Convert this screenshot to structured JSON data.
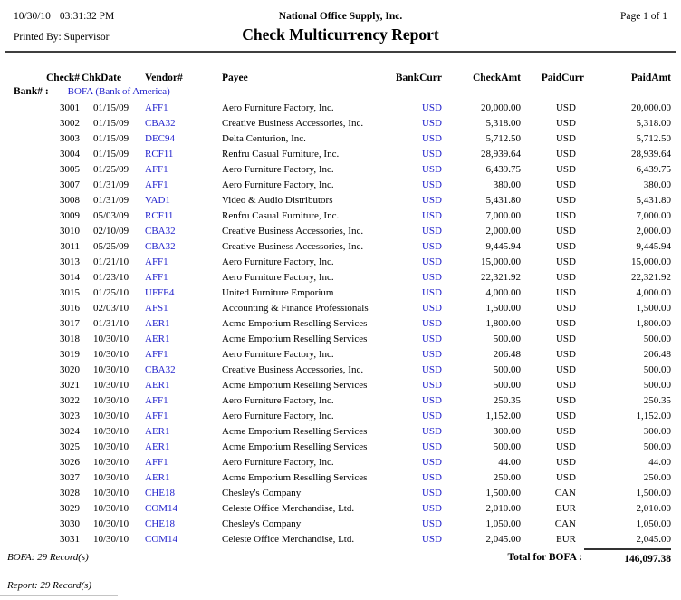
{
  "page": {
    "date": "10/30/10",
    "time": "03:31:32 PM",
    "company": "National Office Supply, Inc.",
    "page_label": "Page 1 of 1",
    "printed_by": "Printed By: Supervisor",
    "title": "Check Multicurrency Report"
  },
  "colors": {
    "link_blue": "#2222cc"
  },
  "table": {
    "columns": [
      "Check#",
      "ChkDate",
      "Vendor#",
      "Payee",
      "BankCurr",
      "CheckAmt",
      "PaidCurr",
      "PaidAmt"
    ],
    "bank_label": "Bank# :",
    "bank_value": "BOFA (Bank of America)",
    "rows": [
      {
        "check": "3001",
        "date": "01/15/09",
        "vendor": "AFF1",
        "payee": "Aero Furniture Factory, Inc.",
        "bank_curr": "USD",
        "check_amt": "20,000.00",
        "paid_curr": "USD",
        "paid_amt": "20,000.00"
      },
      {
        "check": "3002",
        "date": "01/15/09",
        "vendor": "CBA32",
        "payee": "Creative Business Accessories, Inc.",
        "bank_curr": "USD",
        "check_amt": "5,318.00",
        "paid_curr": "USD",
        "paid_amt": "5,318.00"
      },
      {
        "check": "3003",
        "date": "01/15/09",
        "vendor": "DEC94",
        "payee": "Delta Centurion, Inc.",
        "bank_curr": "USD",
        "check_amt": "5,712.50",
        "paid_curr": "USD",
        "paid_amt": "5,712.50"
      },
      {
        "check": "3004",
        "date": "01/15/09",
        "vendor": "RCF11",
        "payee": "Renfru Casual Furniture, Inc.",
        "bank_curr": "USD",
        "check_amt": "28,939.64",
        "paid_curr": "USD",
        "paid_amt": "28,939.64"
      },
      {
        "check": "3005",
        "date": "01/25/09",
        "vendor": "AFF1",
        "payee": "Aero Furniture Factory, Inc.",
        "bank_curr": "USD",
        "check_amt": "6,439.75",
        "paid_curr": "USD",
        "paid_amt": "6,439.75"
      },
      {
        "check": "3007",
        "date": "01/31/09",
        "vendor": "AFF1",
        "payee": "Aero Furniture Factory, Inc.",
        "bank_curr": "USD",
        "check_amt": "380.00",
        "paid_curr": "USD",
        "paid_amt": "380.00"
      },
      {
        "check": "3008",
        "date": "01/31/09",
        "vendor": "VAD1",
        "payee": "Video & Audio Distributors",
        "bank_curr": "USD",
        "check_amt": "5,431.80",
        "paid_curr": "USD",
        "paid_amt": "5,431.80"
      },
      {
        "check": "3009",
        "date": "05/03/09",
        "vendor": "RCF11",
        "payee": "Renfru Casual Furniture, Inc.",
        "bank_curr": "USD",
        "check_amt": "7,000.00",
        "paid_curr": "USD",
        "paid_amt": "7,000.00"
      },
      {
        "check": "3010",
        "date": "02/10/09",
        "vendor": "CBA32",
        "payee": "Creative Business Accessories, Inc.",
        "bank_curr": "USD",
        "check_amt": "2,000.00",
        "paid_curr": "USD",
        "paid_amt": "2,000.00"
      },
      {
        "check": "3011",
        "date": "05/25/09",
        "vendor": "CBA32",
        "payee": "Creative Business Accessories, Inc.",
        "bank_curr": "USD",
        "check_amt": "9,445.94",
        "paid_curr": "USD",
        "paid_amt": "9,445.94"
      },
      {
        "check": "3013",
        "date": "01/21/10",
        "vendor": "AFF1",
        "payee": "Aero Furniture Factory, Inc.",
        "bank_curr": "USD",
        "check_amt": "15,000.00",
        "paid_curr": "USD",
        "paid_amt": "15,000.00"
      },
      {
        "check": "3014",
        "date": "01/23/10",
        "vendor": "AFF1",
        "payee": "Aero Furniture Factory, Inc.",
        "bank_curr": "USD",
        "check_amt": "22,321.92",
        "paid_curr": "USD",
        "paid_amt": "22,321.92"
      },
      {
        "check": "3015",
        "date": "01/25/10",
        "vendor": "UFFE4",
        "payee": "United Furniture Emporium",
        "bank_curr": "USD",
        "check_amt": "4,000.00",
        "paid_curr": "USD",
        "paid_amt": "4,000.00"
      },
      {
        "check": "3016",
        "date": "02/03/10",
        "vendor": "AFS1",
        "payee": "Accounting & Finance Professionals",
        "bank_curr": "USD",
        "check_amt": "1,500.00",
        "paid_curr": "USD",
        "paid_amt": "1,500.00"
      },
      {
        "check": "3017",
        "date": "01/31/10",
        "vendor": "AER1",
        "payee": "Acme Emporium Reselling Services",
        "bank_curr": "USD",
        "check_amt": "1,800.00",
        "paid_curr": "USD",
        "paid_amt": "1,800.00"
      },
      {
        "check": "3018",
        "date": "10/30/10",
        "vendor": "AER1",
        "payee": "Acme Emporium Reselling Services",
        "bank_curr": "USD",
        "check_amt": "500.00",
        "paid_curr": "USD",
        "paid_amt": "500.00"
      },
      {
        "check": "3019",
        "date": "10/30/10",
        "vendor": "AFF1",
        "payee": "Aero Furniture Factory, Inc.",
        "bank_curr": "USD",
        "check_amt": "206.48",
        "paid_curr": "USD",
        "paid_amt": "206.48"
      },
      {
        "check": "3020",
        "date": "10/30/10",
        "vendor": "CBA32",
        "payee": "Creative Business Accessories, Inc.",
        "bank_curr": "USD",
        "check_amt": "500.00",
        "paid_curr": "USD",
        "paid_amt": "500.00"
      },
      {
        "check": "3021",
        "date": "10/30/10",
        "vendor": "AER1",
        "payee": "Acme Emporium Reselling Services",
        "bank_curr": "USD",
        "check_amt": "500.00",
        "paid_curr": "USD",
        "paid_amt": "500.00"
      },
      {
        "check": "3022",
        "date": "10/30/10",
        "vendor": "AFF1",
        "payee": "Aero Furniture Factory, Inc.",
        "bank_curr": "USD",
        "check_amt": "250.35",
        "paid_curr": "USD",
        "paid_amt": "250.35"
      },
      {
        "check": "3023",
        "date": "10/30/10",
        "vendor": "AFF1",
        "payee": "Aero Furniture Factory, Inc.",
        "bank_curr": "USD",
        "check_amt": "1,152.00",
        "paid_curr": "USD",
        "paid_amt": "1,152.00"
      },
      {
        "check": "3024",
        "date": "10/30/10",
        "vendor": "AER1",
        "payee": "Acme Emporium Reselling Services",
        "bank_curr": "USD",
        "check_amt": "300.00",
        "paid_curr": "USD",
        "paid_amt": "300.00"
      },
      {
        "check": "3025",
        "date": "10/30/10",
        "vendor": "AER1",
        "payee": "Acme Emporium Reselling Services",
        "bank_curr": "USD",
        "check_amt": "500.00",
        "paid_curr": "USD",
        "paid_amt": "500.00"
      },
      {
        "check": "3026",
        "date": "10/30/10",
        "vendor": "AFF1",
        "payee": "Aero Furniture Factory, Inc.",
        "bank_curr": "USD",
        "check_amt": "44.00",
        "paid_curr": "USD",
        "paid_amt": "44.00"
      },
      {
        "check": "3027",
        "date": "10/30/10",
        "vendor": "AER1",
        "payee": "Acme Emporium Reselling Services",
        "bank_curr": "USD",
        "check_amt": "250.00",
        "paid_curr": "USD",
        "paid_amt": "250.00"
      },
      {
        "check": "3028",
        "date": "10/30/10",
        "vendor": "CHE18",
        "payee": "Chesley's Company",
        "bank_curr": "USD",
        "check_amt": "1,500.00",
        "paid_curr": "CAN",
        "paid_amt": "1,500.00"
      },
      {
        "check": "3029",
        "date": "10/30/10",
        "vendor": "COM14",
        "payee": "Celeste Office Merchandise, Ltd.",
        "bank_curr": "USD",
        "check_amt": "2,010.00",
        "paid_curr": "EUR",
        "paid_amt": "2,010.00"
      },
      {
        "check": "3030",
        "date": "10/30/10",
        "vendor": "CHE18",
        "payee": "Chesley's Company",
        "bank_curr": "USD",
        "check_amt": "1,050.00",
        "paid_curr": "CAN",
        "paid_amt": "1,050.00"
      },
      {
        "check": "3031",
        "date": "10/30/10",
        "vendor": "COM14",
        "payee": "Celeste Office Merchandise, Ltd.",
        "bank_curr": "USD",
        "check_amt": "2,045.00",
        "paid_curr": "EUR",
        "paid_amt": "2,045.00"
      }
    ],
    "group_footer": "BOFA: 29 Record(s)",
    "total_label": "Total for BOFA :",
    "total_amount": "146,097.38",
    "report_footer": "Report: 29 Record(s)"
  }
}
